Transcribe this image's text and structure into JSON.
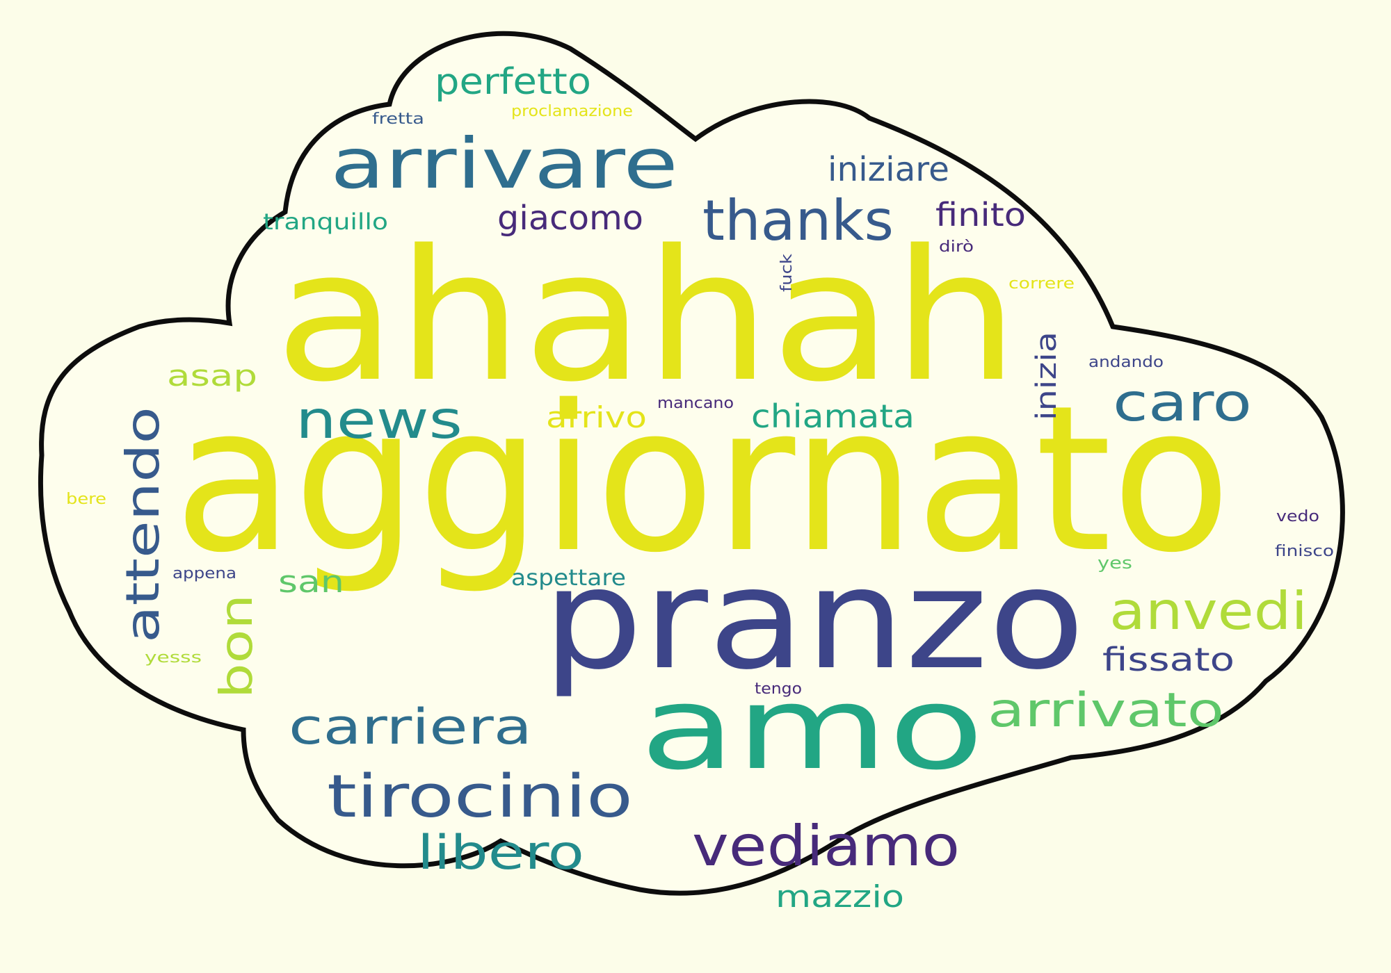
{
  "colors": {
    "background": "#fcfde9",
    "cloud_fill": "#fefeed",
    "cloud_outline": "#0d0d0d",
    "yellow": "#e4e41a",
    "lime": "#b0db3a",
    "green": "#5fc76a",
    "teal": "#22a684",
    "teal_blue": "#238b8c",
    "blue": "#2f6e8e",
    "slate": "#375a8c",
    "indigo": "#3d4589",
    "purple": "#472a7a"
  },
  "words": {
    "aggiornato": "aggiornato",
    "ahahah": "ahahah",
    "pranzo": "pranzo",
    "amo": "amo",
    "arrivare": "arrivare",
    "tirocinio": "tirocinio",
    "vediamo": "vediamo",
    "thanks": "thanks",
    "carriera": "carriera",
    "arrivato": "arrivato",
    "news": "news",
    "caro": "caro",
    "anvedi": "anvedi",
    "attendo": "attendo",
    "libero": "libero",
    "perfetto": "perfetto",
    "bon": "bon",
    "giacomo": "giacomo",
    "iniziare": "iniziare",
    "chiamata": "chiamata",
    "fissato": "fissato",
    "finito": "finito",
    "mazzio": "mazzio",
    "inizia": "inizia",
    "arrivo": "arrivo",
    "asap": "asap",
    "san": "san",
    "aspettare": "aspettare",
    "tranquillo": "tranquillo",
    "proclamazione": "proclamazione",
    "fretta": "fretta",
    "fuck": "fuck",
    "dirò": "dirò",
    "correre": "correre",
    "andando": "andando",
    "mancano": "mancano",
    "bere": "bere",
    "appena": "appena",
    "yes": "yes",
    "vedo": "vedo",
    "finisco": "finisco",
    "yesss": "yesss",
    "tengo": "tengo"
  }
}
